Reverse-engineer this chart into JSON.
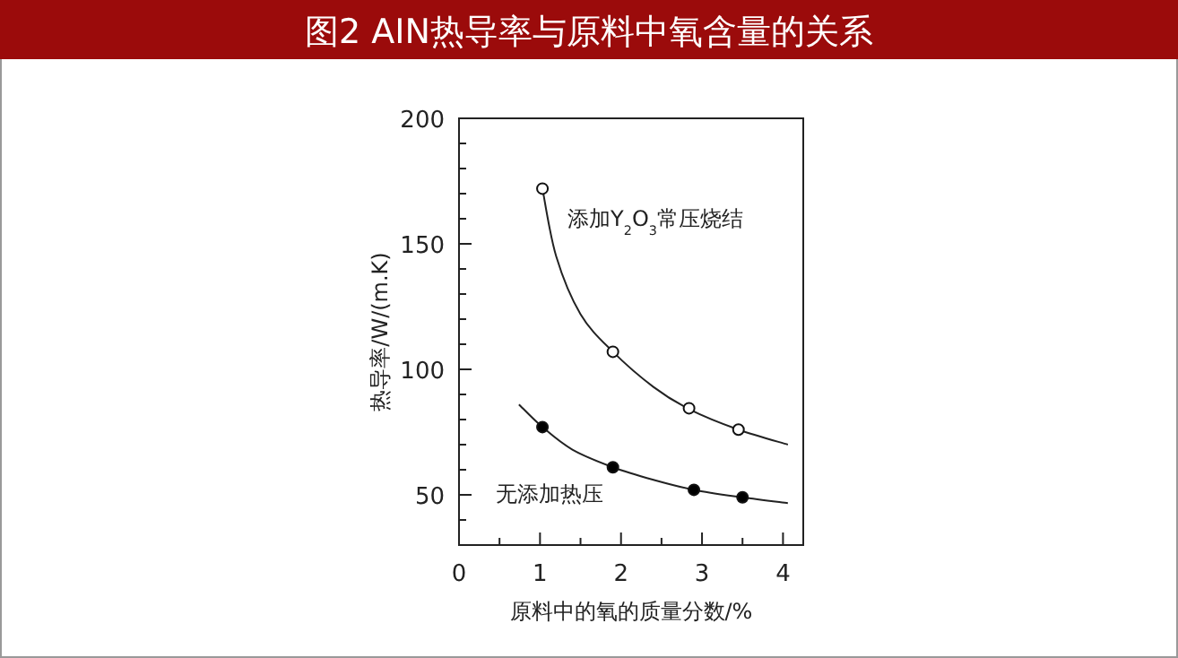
{
  "chart_data": {
    "type": "scatter",
    "title": "图2 AIN热导率与原料中氧含量的关系",
    "xlabel": "原料中的氧的质量分数/%",
    "ylabel": "热导率/W/(m.K)",
    "xlim": [
      0,
      4.25
    ],
    "ylim": [
      30,
      200
    ],
    "xticks": [
      0,
      {
        "value": 0.5,
        "label": null
      },
      1,
      {
        "value": 1.5,
        "label": null
      },
      2,
      {
        "value": 2.5,
        "label": null
      },
      3,
      {
        "value": 3.5,
        "label": null
      },
      4
    ],
    "yticks": [
      {
        "value": 40,
        "label": null
      },
      50,
      {
        "value": 60,
        "label": null
      },
      {
        "value": 70,
        "label": null
      },
      {
        "value": 80,
        "label": null
      },
      {
        "value": 90,
        "label": null
      },
      100,
      {
        "value": 110,
        "label": null
      },
      {
        "value": 120,
        "label": null
      },
      {
        "value": 130,
        "label": null
      },
      {
        "value": 140,
        "label": null
      },
      150,
      {
        "value": 160,
        "label": null
      },
      {
        "value": 170,
        "label": null
      },
      {
        "value": 180,
        "label": null
      },
      {
        "value": 190,
        "label": null
      },
      200
    ],
    "grid": false,
    "series": [
      {
        "type": "line",
        "color": "#222222",
        "marker": "none",
        "x": [
          1.03,
          1.2,
          1.5,
          1.9,
          2.4,
          2.85,
          3.45,
          4.06
        ],
        "values": [
          172,
          145,
          122,
          107,
          93,
          84,
          76,
          70
        ]
      },
      {
        "type": "line",
        "color": "#222222",
        "marker": "none",
        "x": [
          0.74,
          1.03,
          1.4,
          1.9,
          2.4,
          2.9,
          3.5,
          4.06
        ],
        "values": [
          86,
          77,
          68,
          61,
          56,
          52,
          49,
          46.7
        ]
      },
      {
        "type": "scatter",
        "name": "添加Y$_{2}$O$_{3}$常压烧结",
        "color": "#ffffff",
        "marker": "circle",
        "x": [
          1.03,
          1.9,
          2.84,
          3.45
        ],
        "values": [
          172,
          107,
          84.5,
          76
        ]
      },
      {
        "type": "scatter",
        "name": "无添加热压",
        "color": "#000000",
        "marker": "circle",
        "x": [
          1.03,
          1.9,
          2.9,
          3.5
        ],
        "values": [
          77,
          61,
          52,
          49
        ]
      }
    ]
  }
}
